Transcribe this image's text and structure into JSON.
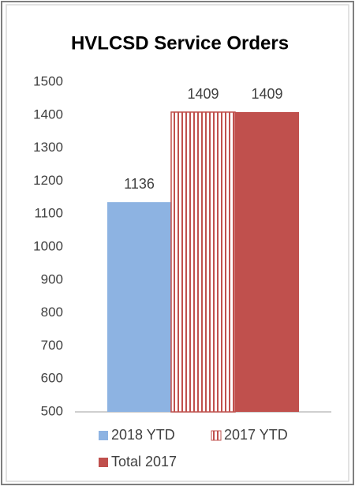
{
  "chart_data": {
    "type": "bar",
    "title": "HVLCSD Service Orders",
    "categories": [
      null
    ],
    "series": [
      {
        "name": "2018 YTD",
        "color": "#8db3e2",
        "values": [
          1136
        ]
      },
      {
        "name": "2017 YTD",
        "color": "#c0504d",
        "pattern": "vertical-stripes",
        "values": [
          1409
        ]
      },
      {
        "name": "Total 2017",
        "color": "#c0504d",
        "values": [
          1409
        ]
      }
    ],
    "ylim": [
      500,
      1500
    ],
    "yticks": [
      500,
      600,
      700,
      800,
      900,
      1000,
      1100,
      1200,
      1300,
      1400,
      1500
    ],
    "grid": false,
    "legend": "bottom"
  }
}
